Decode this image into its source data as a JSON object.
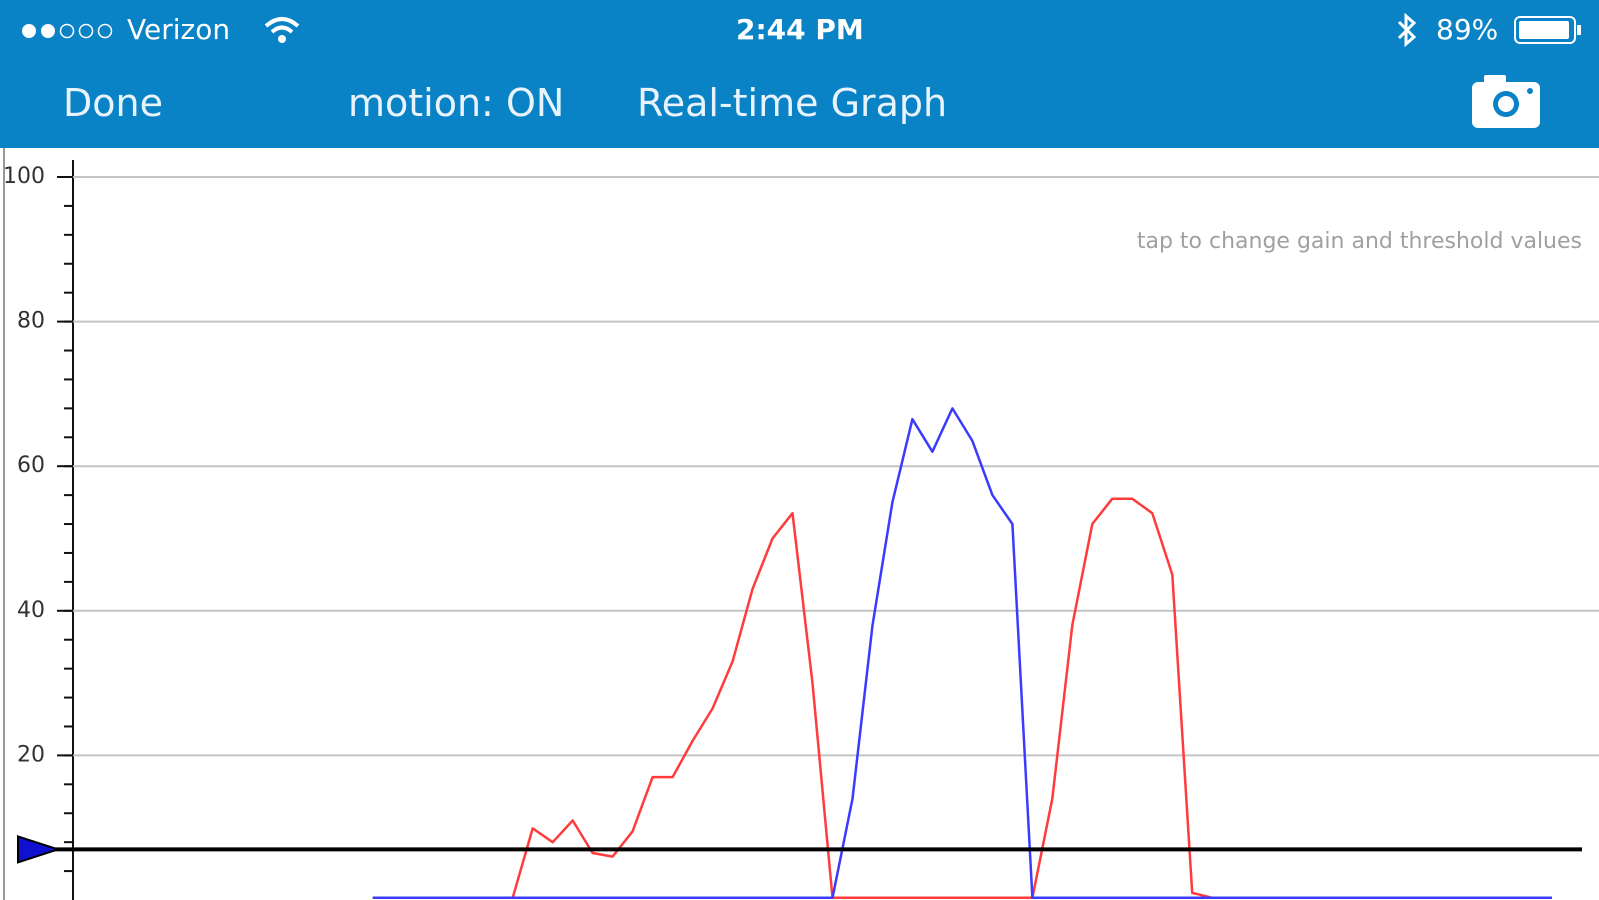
{
  "status_bar": {
    "carrier": "Verizon",
    "time": "2:44 PM",
    "battery": "89%"
  },
  "nav_bar": {
    "done": "Done",
    "motion": "motion: ON",
    "title": "Real-time Graph"
  },
  "chart_data": {
    "type": "line",
    "annotation": "tap to change gain and threshold values",
    "x": [
      0,
      1,
      2,
      3,
      4,
      5,
      6,
      7,
      8,
      9,
      10,
      11,
      12,
      13,
      14,
      15,
      16,
      17,
      18,
      19,
      20,
      21,
      22,
      23,
      24,
      25,
      26,
      27,
      28,
      29,
      30,
      31,
      32,
      33,
      34,
      35,
      36,
      37,
      38,
      39,
      40,
      41,
      42,
      43,
      44,
      45,
      46,
      47,
      48,
      49,
      50,
      51,
      52,
      53,
      54,
      55,
      56,
      57,
      58,
      59,
      60,
      61,
      62,
      63,
      64,
      65,
      66,
      67,
      68,
      69,
      70,
      71,
      72,
      73,
      74
    ],
    "xlim": [
      0,
      74
    ],
    "ylim": [
      0,
      100
    ],
    "yticks": [
      20,
      40,
      60,
      80,
      100
    ],
    "grid": true,
    "threshold": 7,
    "threshold_color": "#1010d0",
    "series": [
      {
        "color": "#ff3b3b",
        "values": [
          null,
          null,
          null,
          null,
          null,
          null,
          null,
          null,
          null,
          null,
          null,
          null,
          null,
          null,
          null,
          0.3,
          0.3,
          0.3,
          0.3,
          0.3,
          0.3,
          0.3,
          0.3,
          9.9,
          8,
          11,
          6.5,
          6,
          9.5,
          17,
          17,
          22,
          26.5,
          33,
          43,
          50,
          53.5,
          30,
          0.3,
          0.3,
          0.3,
          0.3,
          0.3,
          0.3,
          0.3,
          0.3,
          0.3,
          0.3,
          0.3,
          14,
          38,
          52,
          55.5,
          55.5,
          53.5,
          45,
          1,
          0.3,
          0.3,
          0.3,
          0.3,
          0.3,
          0.3,
          0.3,
          0.3,
          0.3,
          0.3,
          0.3,
          0.3,
          0.3,
          0.3,
          0.3,
          0.3,
          0.3,
          0.3
        ]
      },
      {
        "color": "#3b3bff",
        "values": [
          null,
          null,
          null,
          null,
          null,
          null,
          null,
          null,
          null,
          null,
          null,
          null,
          null,
          null,
          null,
          0.3,
          0.3,
          0.3,
          0.3,
          0.3,
          0.3,
          0.3,
          0.3,
          0.3,
          0.3,
          0.3,
          0.3,
          0.3,
          0.3,
          0.3,
          0.3,
          0.3,
          0.3,
          0.3,
          0.3,
          0.3,
          0.3,
          0.3,
          0.3,
          14,
          38,
          55,
          66.5,
          62,
          68,
          63.5,
          56,
          52,
          0.3,
          0.3,
          0.3,
          0.3,
          0.3,
          0.3,
          0.3,
          0.3,
          0.3,
          0.3,
          0.3,
          0.3,
          0.3,
          0.3,
          0.3,
          0.3,
          0.3,
          0.3,
          0.3,
          0.3,
          0.3,
          0.3,
          0.3,
          0.3,
          0.3,
          0.3,
          0.3
        ]
      }
    ]
  }
}
